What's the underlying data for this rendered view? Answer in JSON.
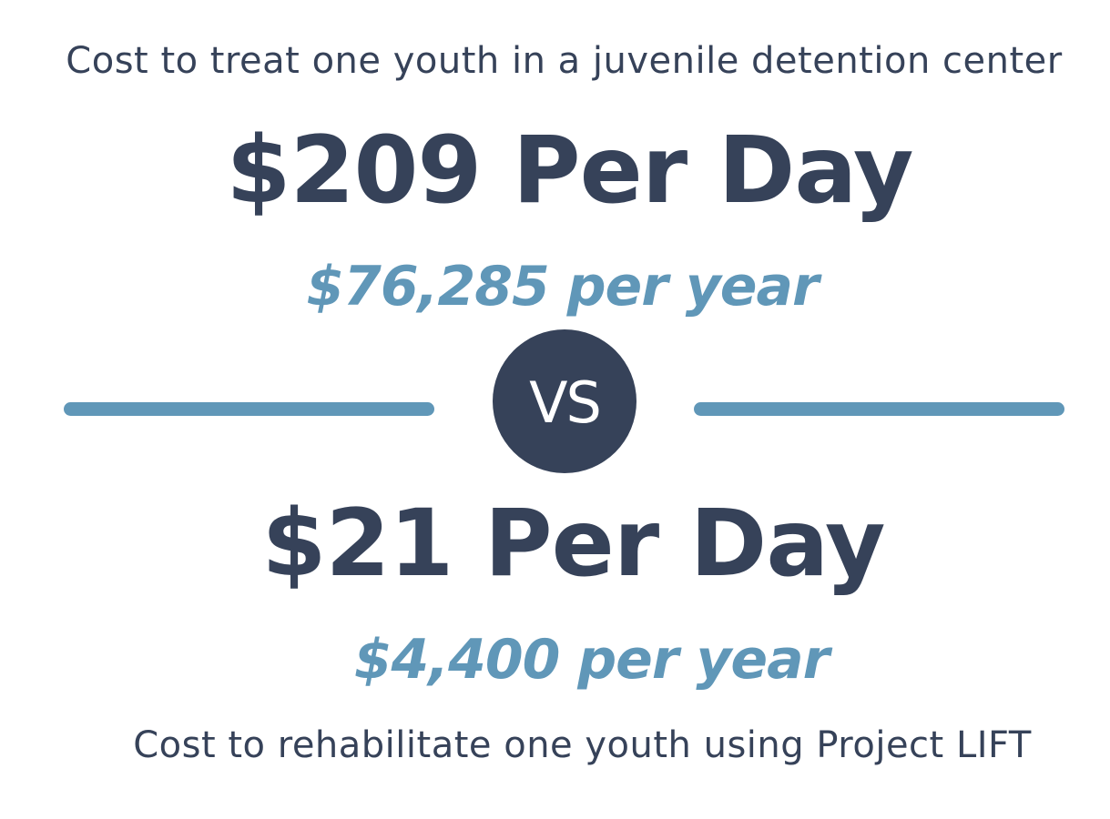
{
  "top_caption": "Cost to treat one youth in a juvenile detention center",
  "detention": {
    "per_day": "$209 Per Day",
    "per_year": "$76,285 per year"
  },
  "vs_label": "VS",
  "project_lift": {
    "per_day": "$21 Per Day",
    "per_year": "$4,400 per year"
  },
  "bottom_caption": "Cost to rehabilitate one youth using Project LIFT",
  "colors": {
    "dark": "#364259",
    "accent": "#6097b8",
    "background": "#ffffff"
  }
}
